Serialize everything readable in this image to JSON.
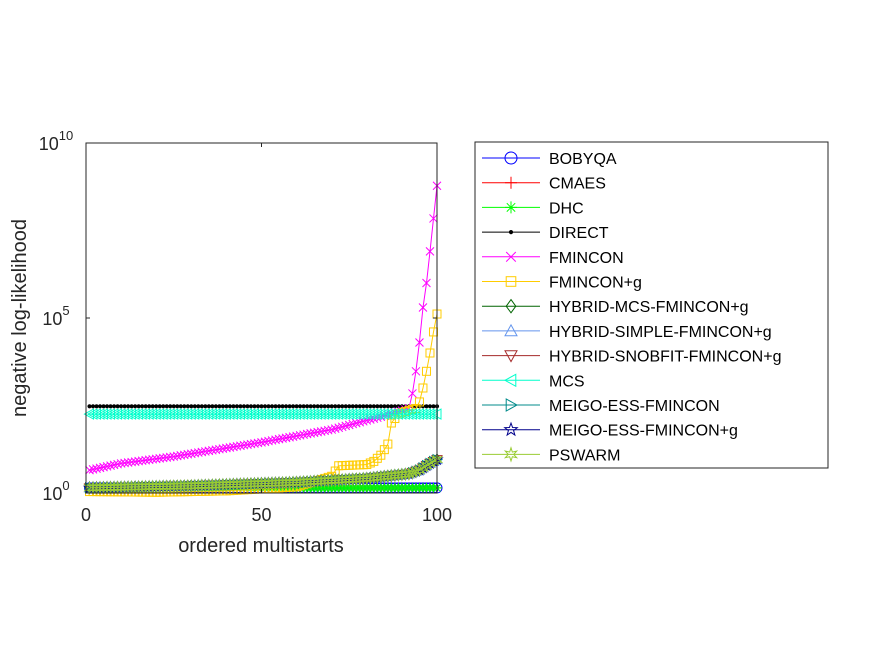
{
  "chart_data": {
    "type": "line",
    "xlabel": "ordered multistarts",
    "ylabel": "negative log-likelihood",
    "x_scale": "linear",
    "y_scale": "log",
    "xlim": [
      0,
      100
    ],
    "ylim": [
      1,
      10000000000
    ],
    "x_ticks": [
      {
        "value": 0,
        "label": "0"
      },
      {
        "value": 50,
        "label": "50"
      },
      {
        "value": 100,
        "label": "100"
      }
    ],
    "y_ticks": [
      {
        "value": 1,
        "base": "10",
        "exp": "0"
      },
      {
        "value": 100000,
        "base": "10",
        "exp": "5"
      },
      {
        "value": 10000000000,
        "base": "10",
        "exp": "10"
      }
    ],
    "grid": false,
    "legend_position": "outside-right",
    "series": [
      {
        "name": "BOBYQA",
        "color": "#0000ff",
        "marker": "circle",
        "curve": [
          [
            1,
            1.4
          ],
          [
            100,
            1.4
          ]
        ]
      },
      {
        "name": "CMAES",
        "color": "#ff0000",
        "marker": "plus",
        "curve": [
          [
            1,
            1.4
          ],
          [
            100,
            1.4
          ]
        ]
      },
      {
        "name": "DHC",
        "color": "#00ff00",
        "marker": "asterisk",
        "curve": [
          [
            1,
            1.4
          ],
          [
            100,
            1.4
          ]
        ]
      },
      {
        "name": "DIRECT",
        "color": "#000000",
        "marker": "dot",
        "curve": [
          [
            1,
            300
          ],
          [
            100,
            300
          ]
        ]
      },
      {
        "name": "FMINCON",
        "color": "#ff00ff",
        "marker": "x",
        "curve": [
          [
            1,
            4.5
          ],
          [
            10,
            7
          ],
          [
            25,
            11
          ],
          [
            50,
            28
          ],
          [
            70,
            65
          ],
          [
            85,
            160
          ],
          [
            92,
            260
          ],
          [
            93,
            700
          ],
          [
            94,
            3000
          ],
          [
            95,
            20000
          ],
          [
            96,
            200000
          ],
          [
            97,
            1000000
          ],
          [
            98,
            8000000
          ],
          [
            99,
            70000000
          ],
          [
            100,
            600000000
          ]
        ]
      },
      {
        "name": "FMINCON+g",
        "color": "#ffcc00",
        "marker": "square",
        "curve": [
          [
            1,
            1.1
          ],
          [
            20,
            1.05
          ],
          [
            40,
            1.15
          ],
          [
            60,
            1.5
          ],
          [
            70,
            3
          ],
          [
            72,
            6
          ],
          [
            80,
            6.5
          ],
          [
            82,
            8
          ],
          [
            84,
            12
          ],
          [
            86,
            25
          ],
          [
            87,
            100
          ],
          [
            89,
            180
          ],
          [
            92,
            230
          ],
          [
            94,
            260
          ],
          [
            95,
            400
          ],
          [
            96,
            1000
          ],
          [
            97,
            3000
          ],
          [
            98,
            10000
          ],
          [
            99,
            40000
          ],
          [
            100,
            130000
          ]
        ]
      },
      {
        "name": "HYBRID-MCS-FMINCON+g",
        "color": "#006400",
        "marker": "diamond",
        "curve": [
          [
            1,
            1.4
          ],
          [
            30,
            1.6
          ],
          [
            60,
            2
          ],
          [
            80,
            2.6
          ],
          [
            92,
            3.5
          ],
          [
            95,
            4.5
          ],
          [
            98,
            7
          ],
          [
            100,
            9
          ]
        ]
      },
      {
        "name": "HYBRID-SIMPLE-FMINCON+g",
        "color": "#6495ed",
        "marker": "triangle-up",
        "curve": [
          [
            1,
            1.4
          ],
          [
            30,
            1.6
          ],
          [
            60,
            2
          ],
          [
            80,
            2.6
          ],
          [
            92,
            3.5
          ],
          [
            95,
            4.5
          ],
          [
            98,
            7
          ],
          [
            100,
            9
          ]
        ]
      },
      {
        "name": "HYBRID-SNOBFIT-FMINCON+g",
        "color": "#a52a2a",
        "marker": "triangle-down",
        "curve": [
          [
            1,
            1.4
          ],
          [
            30,
            1.6
          ],
          [
            60,
            2
          ],
          [
            80,
            2.6
          ],
          [
            92,
            3.5
          ],
          [
            95,
            4.5
          ],
          [
            98,
            7
          ],
          [
            100,
            9
          ]
        ]
      },
      {
        "name": "MCS",
        "color": "#00ffcc",
        "marker": "triangle-left",
        "curve": [
          [
            1,
            180
          ],
          [
            100,
            180
          ]
        ]
      },
      {
        "name": "MEIGO-ESS-FMINCON",
        "color": "#008b8b",
        "marker": "triangle-right",
        "curve": [
          [
            1,
            1.4
          ],
          [
            30,
            1.6
          ],
          [
            60,
            2
          ],
          [
            80,
            2.6
          ],
          [
            92,
            3.5
          ],
          [
            95,
            4.5
          ],
          [
            98,
            7
          ],
          [
            100,
            9
          ]
        ]
      },
      {
        "name": "MEIGO-ESS-FMINCON+g",
        "color": "#00008b",
        "marker": "pentagram",
        "curve": [
          [
            1,
            1.4
          ],
          [
            30,
            1.6
          ],
          [
            60,
            2
          ],
          [
            80,
            2.6
          ],
          [
            92,
            3.5
          ],
          [
            95,
            4.5
          ],
          [
            98,
            7
          ],
          [
            100,
            9
          ]
        ]
      },
      {
        "name": "PSWARM",
        "color": "#99cc33",
        "marker": "hexagram",
        "curve": [
          [
            1,
            1.4
          ],
          [
            30,
            1.6
          ],
          [
            60,
            2
          ],
          [
            80,
            2.6
          ],
          [
            92,
            3.5
          ],
          [
            95,
            4.5
          ],
          [
            98,
            7
          ],
          [
            100,
            9
          ]
        ]
      }
    ]
  }
}
